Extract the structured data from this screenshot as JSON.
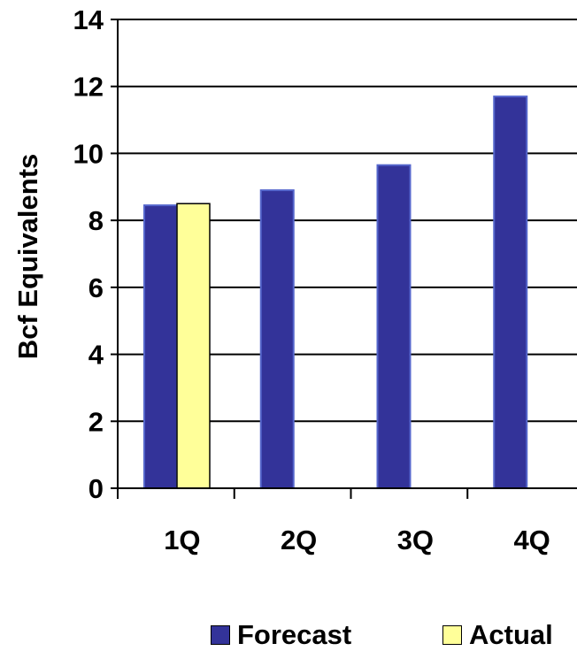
{
  "chart_data": {
    "type": "bar",
    "title": "",
    "xlabel": "",
    "ylabel": "Bcf Equivalents",
    "categories": [
      "1Q",
      "2Q",
      "3Q",
      "4Q"
    ],
    "series": [
      {
        "name": "Forecast",
        "color": "#333399",
        "values": [
          8.45,
          8.9,
          9.65,
          11.7
        ]
      },
      {
        "name": "Actual",
        "color": "#FFFF99",
        "values": [
          8.5,
          null,
          null,
          null
        ]
      }
    ],
    "ylim": [
      0,
      14
    ],
    "yticks": [
      "0",
      "2",
      "4",
      "6",
      "8",
      "10",
      "12",
      "14"
    ],
    "grid": true,
    "legend_position": "bottom-right"
  }
}
